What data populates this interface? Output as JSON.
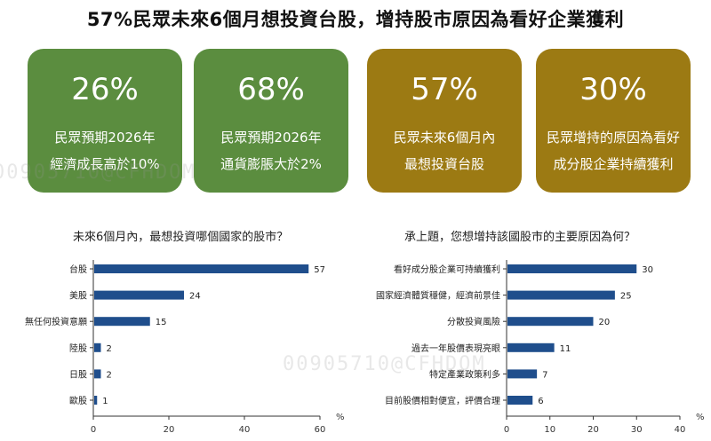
{
  "title": "57%民眾未來6個月想投資台股，增持股市原因為看好企業獲利",
  "colors": {
    "green": "#5b8d3f",
    "gold": "#9c7a13",
    "bar": "#1f4e8c"
  },
  "cards": [
    {
      "pct": "26%",
      "line1": "民眾預期2026年",
      "line2": "經濟成長高於10%",
      "color": "#5b8d3f"
    },
    {
      "pct": "68%",
      "line1": "民眾預期2026年",
      "line2": "通貨膨脹大於2%",
      "color": "#5b8d3f"
    },
    {
      "pct": "57%",
      "line1": "民眾未來6個月內",
      "line2": "最想投資台股",
      "color": "#9c7a13"
    },
    {
      "pct": "30%",
      "line1": "民眾增持的原因為看好",
      "line2": "成分股企業持續獲利",
      "color": "#9c7a13"
    }
  ],
  "watermarks": [
    "00905710@CFHDOM",
    "00905710@CFHDOM"
  ],
  "chart_data": [
    {
      "type": "bar",
      "orientation": "horizontal",
      "title": "未來6個月內，最想投資哪個國家的股市？",
      "categories": [
        "台股",
        "美股",
        "無任何投資意願",
        "陸股",
        "日股",
        "歐股"
      ],
      "values": [
        57,
        24,
        15,
        2,
        2,
        1
      ],
      "xlim": [
        0,
        60
      ],
      "ticks": [
        0,
        20,
        40,
        60
      ],
      "unit": "%"
    },
    {
      "type": "bar",
      "orientation": "horizontal",
      "title": "承上題，您想增持該國股市的主要原因為何？",
      "categories": [
        "看好成分股企業可持續獲利",
        "國家經濟體質穩健，經濟前景佳",
        "分散投資風險",
        "過去一年股價表現亮眼",
        "特定產業政策利多",
        "目前股價相對便宜，評價合理"
      ],
      "values": [
        30,
        25,
        20,
        11,
        7,
        6
      ],
      "xlim": [
        0,
        40
      ],
      "ticks": [
        0,
        10,
        20,
        30,
        40
      ],
      "unit": "%"
    }
  ]
}
